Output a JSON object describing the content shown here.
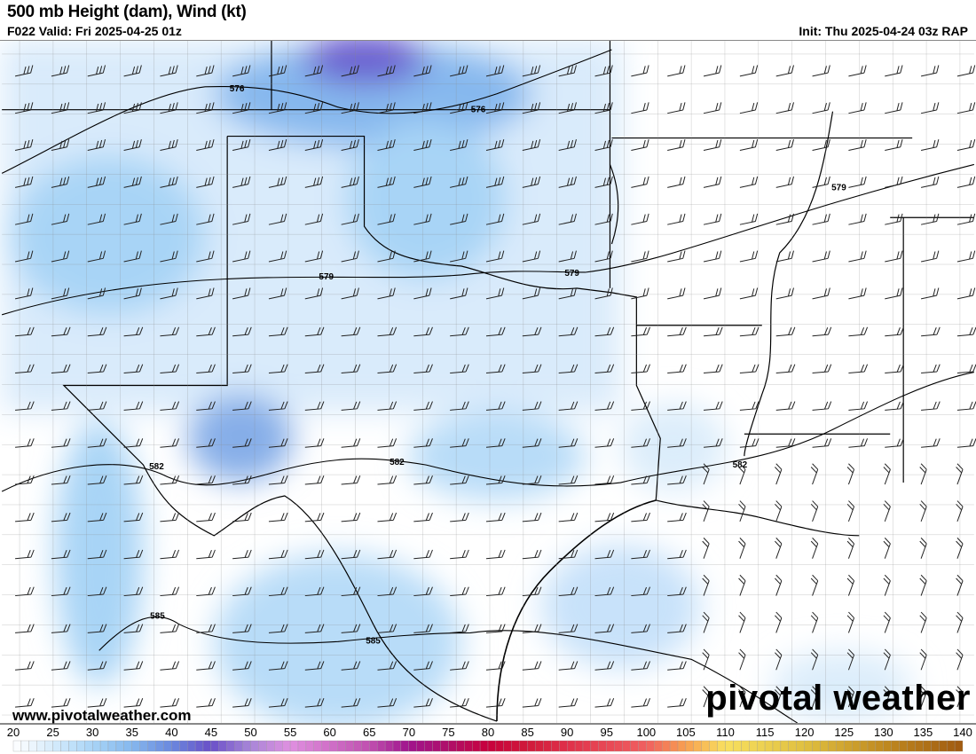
{
  "header": {
    "title": "500 mb Height (dam), Wind (kt)",
    "valid": "F022 Valid: Fri 2025-04-25 01z",
    "init": "Init: Thu 2025-04-24 03z RAP"
  },
  "footer": {
    "url": "www.pivotalweather.com",
    "logo": "pivotal weather"
  },
  "contours": [
    {
      "label": "576"
    },
    {
      "label": "576"
    },
    {
      "label": "579"
    },
    {
      "label": "579"
    },
    {
      "label": "579"
    },
    {
      "label": "582"
    },
    {
      "label": "582"
    },
    {
      "label": "582"
    },
    {
      "label": "585"
    },
    {
      "label": "585"
    }
  ],
  "colorbar": {
    "min": 20,
    "max": 140,
    "ticks": [
      "20",
      "25",
      "30",
      "35",
      "40",
      "45",
      "50",
      "55",
      "60",
      "65",
      "70",
      "75",
      "80",
      "85",
      "90",
      "95",
      "100",
      "105",
      "110",
      "115",
      "120",
      "125",
      "130",
      "135",
      "140"
    ],
    "stops": [
      {
        "v": 20,
        "c": "#ffffff"
      },
      {
        "v": 25,
        "c": "#d6ebfb"
      },
      {
        "v": 30,
        "c": "#a8d4f6"
      },
      {
        "v": 35,
        "c": "#86b8ee"
      },
      {
        "v": 40,
        "c": "#6a88de"
      },
      {
        "v": 45,
        "c": "#6a4fc8"
      },
      {
        "v": 50,
        "c": "#a886d8"
      },
      {
        "v": 55,
        "c": "#e090e0"
      },
      {
        "v": 60,
        "c": "#d070c8"
      },
      {
        "v": 65,
        "c": "#c050b0"
      },
      {
        "v": 70,
        "c": "#a0148c"
      },
      {
        "v": 75,
        "c": "#b0106a"
      },
      {
        "v": 80,
        "c": "#c8003c"
      },
      {
        "v": 85,
        "c": "#d01a3a"
      },
      {
        "v": 90,
        "c": "#e0304a"
      },
      {
        "v": 100,
        "c": "#f06060"
      },
      {
        "v": 105,
        "c": "#f8a050"
      },
      {
        "v": 110,
        "c": "#f8e060"
      },
      {
        "v": 120,
        "c": "#e0c040"
      },
      {
        "v": 130,
        "c": "#c08a20"
      },
      {
        "v": 140,
        "c": "#a05a10"
      }
    ]
  }
}
